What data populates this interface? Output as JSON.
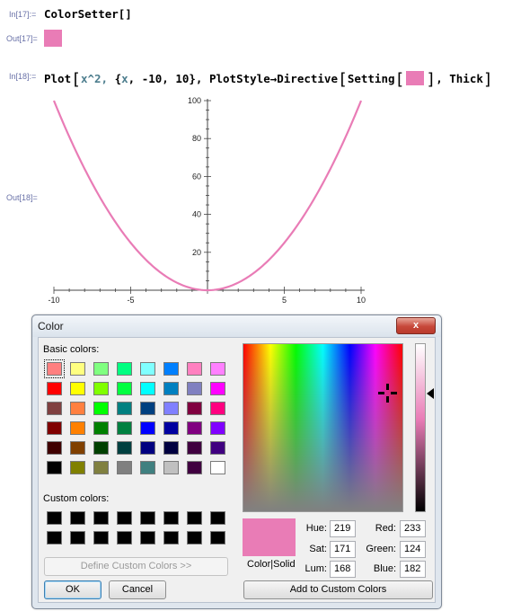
{
  "cells": [
    {
      "label": "In[17]:=",
      "code": "ColorSetter[]"
    },
    {
      "label": "Out[17]="
    },
    {
      "label": "In[18]:=",
      "code_parts": {
        "fn": "Plot",
        "arg1": "x^2,",
        "list_open": "{",
        "list_var": "x",
        "list_rest": ", -10, 10},",
        "opt": "PlotStyle",
        "arrow": "→",
        "dir": "Directive",
        "setting": "Setting",
        "thick": ", Thick"
      }
    },
    {
      "label": "Out[18]="
    }
  ],
  "selected_color": "#e97cb6",
  "chart_data": {
    "type": "line",
    "function": "x^2",
    "x": [
      -10,
      -9,
      -8,
      -7,
      -6,
      -5,
      -4,
      -3,
      -2,
      -1,
      0,
      1,
      2,
      3,
      4,
      5,
      6,
      7,
      8,
      9,
      10
    ],
    "y": [
      100,
      81,
      64,
      49,
      36,
      25,
      16,
      9,
      4,
      1,
      0,
      1,
      4,
      9,
      16,
      25,
      36,
      49,
      64,
      81,
      100
    ],
    "xlim": [
      -10,
      10
    ],
    "ylim": [
      0,
      100
    ],
    "x_ticks": [
      "-10",
      "-5",
      "5",
      "10"
    ],
    "y_ticks": [
      "20",
      "40",
      "60",
      "80",
      "100"
    ],
    "line_color": "#e97cb6"
  },
  "dialog": {
    "title": "Color",
    "close_glyph": "x",
    "basic_colors_label": "Basic colors:",
    "custom_colors_label": "Custom colors:",
    "basic_colors": [
      [
        "#ff8080",
        "#ffff80",
        "#80ff80",
        "#00ff80",
        "#80ffff",
        "#0080ff",
        "#ff80c0",
        "#ff80ff"
      ],
      [
        "#ff0000",
        "#ffff00",
        "#80ff00",
        "#00ff40",
        "#00ffff",
        "#0080c0",
        "#8080c0",
        "#ff00ff"
      ],
      [
        "#804040",
        "#ff8040",
        "#00ff00",
        "#008080",
        "#004080",
        "#8080ff",
        "#800040",
        "#ff0080"
      ],
      [
        "#800000",
        "#ff8000",
        "#008000",
        "#008040",
        "#0000ff",
        "#0000a0",
        "#800080",
        "#8000ff"
      ],
      [
        "#400000",
        "#804000",
        "#004000",
        "#004040",
        "#000080",
        "#000040",
        "#400040",
        "#400080"
      ],
      [
        "#000000",
        "#808000",
        "#808040",
        "#808080",
        "#408080",
        "#c0c0c0",
        "#400040",
        "#ffffff"
      ]
    ],
    "custom_colors": [
      [
        "#000000",
        "#000000",
        "#000000",
        "#000000",
        "#000000",
        "#000000",
        "#000000",
        "#000000"
      ],
      [
        "#000000",
        "#000000",
        "#000000",
        "#000000",
        "#000000",
        "#000000",
        "#000000",
        "#000000"
      ]
    ],
    "define_custom_label": "Define Custom Colors >>",
    "ok_label": "OK",
    "cancel_label": "Cancel",
    "color_solid_label": "Color|Solid",
    "hue_label": "Hue:",
    "hue": "219",
    "sat_label": "Sat:",
    "sat": "171",
    "lum_label": "Lum:",
    "lum": "168",
    "red_label": "Red:",
    "red": "233",
    "green_label": "Green:",
    "green": "124",
    "blue_label": "Blue:",
    "blue": "182",
    "add_custom_label": "Add to Custom Colors"
  }
}
